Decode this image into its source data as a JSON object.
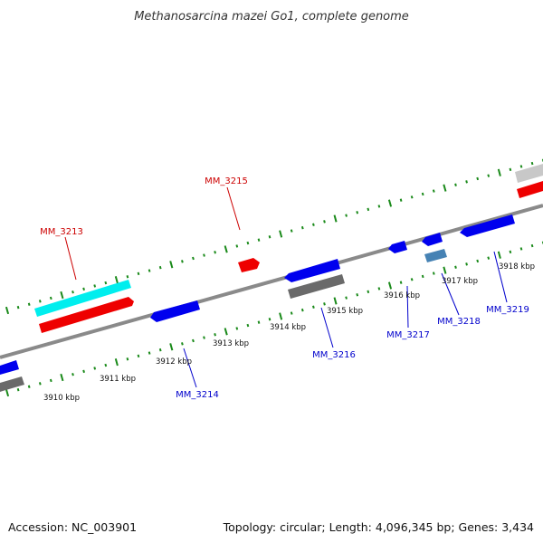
{
  "title": "Methanosarcina mazei Go1, complete genome",
  "footer": {
    "accession": "Accession: NC_003901",
    "summary": "Topology: circular; Length: 4,096,345 bp; Genes: 3,434"
  },
  "colors": {
    "backbone": "#8a8a8a",
    "tick": "#1a8a1a",
    "label_forward": "#cc0000",
    "label_reverse": "#0000cc",
    "gene_red": "#ee0000",
    "gene_cyan": "#00eeee",
    "gene_blue": "#0000ee",
    "gene_gray": "#6a6a6a",
    "gene_lightgray": "#c8c8c8",
    "gene_steel": "#4682b4"
  },
  "scale": {
    "unit": "kbp",
    "labels": [
      "3910 kbp",
      "3911 kbp",
      "3912 kbp",
      "3913 kbp",
      "3914 kbp",
      "3915 kbp",
      "3916 kbp",
      "3917 kbp",
      "3918 kbp"
    ]
  },
  "labels": [
    {
      "name": "MM_3213",
      "strand": "forward"
    },
    {
      "name": "MM_3215",
      "strand": "forward"
    },
    {
      "name": "MM_3214",
      "strand": "reverse"
    },
    {
      "name": "MM_3216",
      "strand": "reverse"
    },
    {
      "name": "MM_3217",
      "strand": "reverse"
    },
    {
      "name": "MM_3218",
      "strand": "reverse"
    },
    {
      "name": "MM_3219",
      "strand": "reverse"
    }
  ]
}
